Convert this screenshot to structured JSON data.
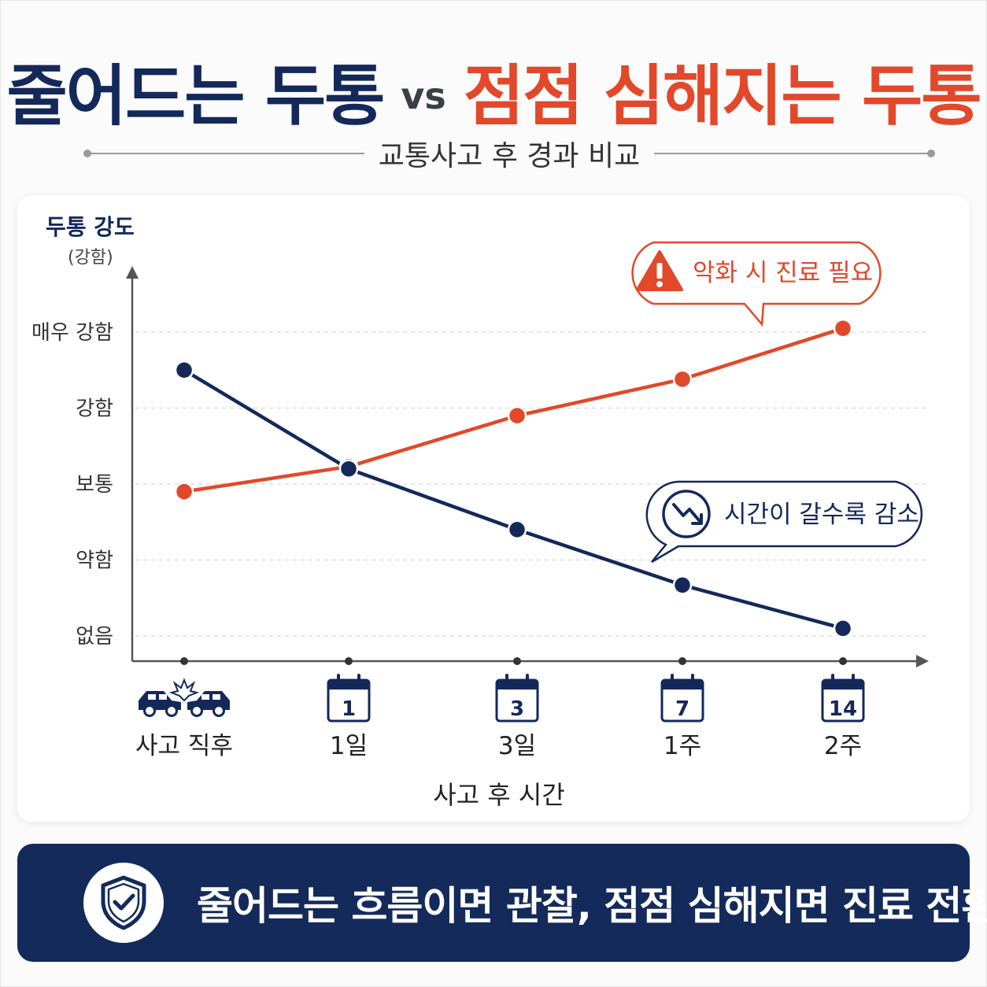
{
  "header": {
    "title_left": "줄어드는 두통",
    "title_vs": "vs",
    "title_right": "점점 심해지는 두통",
    "subtitle": "교통사고 후 경과 비교"
  },
  "colors": {
    "navy": "#14285a",
    "orange": "#e2482a",
    "axis": "#555555",
    "grid": "#d8d8d8"
  },
  "chart_data": {
    "type": "line",
    "ylabel": "두통 강도",
    "ylabel_sub": "(강함)",
    "xlabel": "사고 후 시간",
    "y_levels": [
      "없음",
      "약함",
      "보통",
      "강함",
      "매우 강함"
    ],
    "ylim": [
      0,
      4
    ],
    "grid": true,
    "categories": [
      "사고 직후",
      "1일",
      "3일",
      "1주",
      "2주"
    ],
    "category_icons": [
      "car-crash-icon",
      "calendar-icon",
      "calendar-icon",
      "calendar-icon",
      "calendar-icon"
    ],
    "calendar_numbers": [
      "",
      "1",
      "3",
      "7",
      "14"
    ],
    "series": [
      {
        "color": "#e2482a",
        "values": [
          1.9,
          2.23,
          2.9,
          3.38,
          4.05
        ]
      },
      {
        "color": "#14285a",
        "values": [
          3.5,
          2.2,
          1.4,
          0.67,
          0.1
        ]
      }
    ],
    "annotations": [
      {
        "text": "악화 시 진료 필요",
        "icon": "warning-icon",
        "color": "#e2482a"
      },
      {
        "text": "시간이 갈수록 감소",
        "icon": "trend-down-icon",
        "color": "#14285a"
      }
    ]
  },
  "footer": {
    "icon": "shield-check-icon",
    "message": "줄어드는 흐름이면 관찰, 점점 심해지면 진료 전환"
  }
}
